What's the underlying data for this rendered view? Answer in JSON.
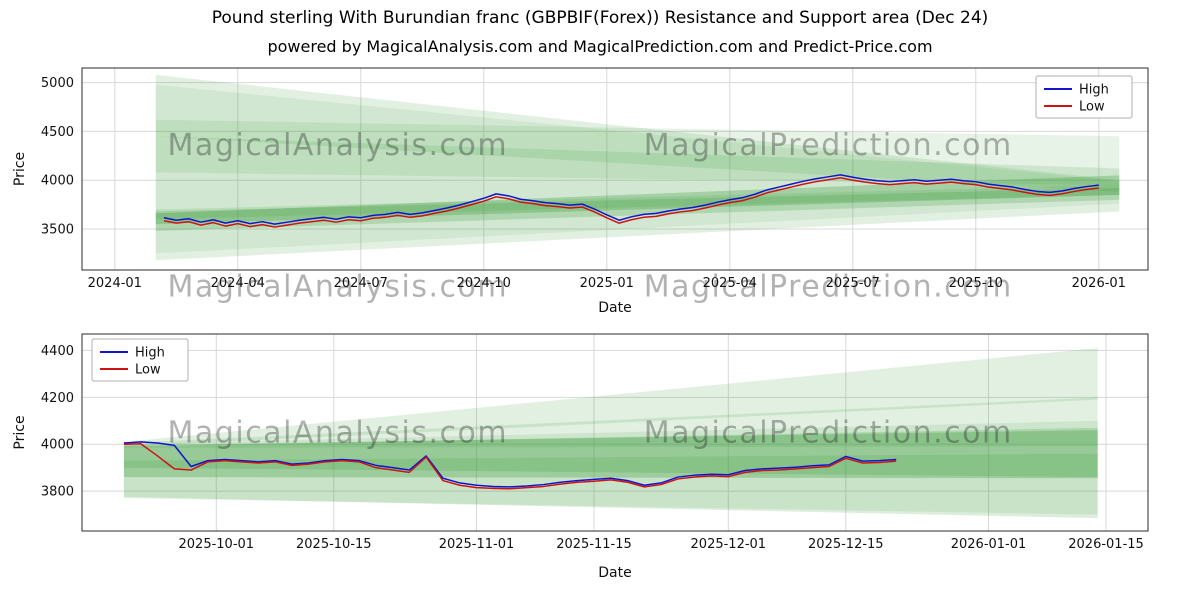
{
  "page": {
    "title": "Pound sterling With Burundian franc (GBPBIF(Forex)) Resistance and Support area (Dec 24)",
    "subtitle": "powered by MagicalAnalysis.com and MagicalPrediction.com and Predict-Price.com"
  },
  "legend": {
    "high_label": "High",
    "low_label": "Low",
    "high_color": "#1414cc",
    "low_color": "#cc1414"
  },
  "chart_data": [
    {
      "type": "line",
      "xlabel": "Date",
      "ylabel": "Price",
      "x_range": [
        -0.8,
        25.2
      ],
      "y_range": [
        3080,
        5150
      ],
      "x_ticks": [
        {
          "v": 0,
          "label": "2024-01"
        },
        {
          "v": 3,
          "label": "2024-04"
        },
        {
          "v": 6,
          "label": "2024-07"
        },
        {
          "v": 9,
          "label": "2024-10"
        },
        {
          "v": 12,
          "label": "2025-01"
        },
        {
          "v": 15,
          "label": "2025-04"
        },
        {
          "v": 18,
          "label": "2025-07"
        },
        {
          "v": 21,
          "label": "2025-10"
        },
        {
          "v": 24,
          "label": "2026-01"
        }
      ],
      "y_ticks": [
        3500,
        4000,
        4500,
        5000
      ],
      "band_color": "#3c9c3c",
      "band_x": [
        1.0,
        24.5
      ],
      "bands": [
        {
          "t0": 5080,
          "b0": 4450,
          "t1": 4000,
          "b1": 3880,
          "o": 0.15
        },
        {
          "t0": 4980,
          "b0": 3250,
          "t1": 3990,
          "b1": 3760,
          "o": 0.1
        },
        {
          "t0": 4620,
          "b0": 4080,
          "t1": 4450,
          "b1": 3950,
          "o": 0.12
        },
        {
          "t0": 4450,
          "b0": 3600,
          "t1": 4120,
          "b1": 3850,
          "o": 0.15
        },
        {
          "t0": 3700,
          "b0": 3180,
          "t1": 3950,
          "b1": 3680,
          "o": 0.15
        },
        {
          "t0": 3680,
          "b0": 3480,
          "t1": 3920,
          "b1": 3800,
          "o": 0.22
        },
        {
          "t0": 3660,
          "b0": 3550,
          "t1": 4050,
          "b1": 3850,
          "o": 0.3
        }
      ],
      "legend_position": "top-right",
      "watermarks": [
        {
          "text": "MagicalAnalysis.com",
          "fx": 0.24,
          "fy": 0.43
        },
        {
          "text": "MagicalPrediction.com",
          "fx": 0.7,
          "fy": 0.43
        },
        {
          "text": "MagicalAnalysis.com",
          "fx": 0.24,
          "fy": 1.13
        },
        {
          "text": "MagicalPrediction.com",
          "fx": 0.7,
          "fy": 1.13
        }
      ],
      "series": [
        {
          "name": "High",
          "color": "#1414cc",
          "x_start": 1.2,
          "x_step": 0.3,
          "y": [
            3615,
            3590,
            3605,
            3570,
            3595,
            3560,
            3585,
            3555,
            3575,
            3550,
            3570,
            3590,
            3605,
            3620,
            3600,
            3625,
            3615,
            3640,
            3650,
            3670,
            3650,
            3665,
            3690,
            3715,
            3745,
            3780,
            3815,
            3860,
            3840,
            3805,
            3790,
            3770,
            3760,
            3745,
            3755,
            3705,
            3645,
            3590,
            3625,
            3650,
            3660,
            3685,
            3705,
            3720,
            3745,
            3775,
            3800,
            3820,
            3855,
            3900,
            3930,
            3960,
            3990,
            4015,
            4035,
            4055,
            4030,
            4010,
            3995,
            3985,
            3995,
            4005,
            3990,
            4000,
            4010,
            3995,
            3985,
            3960,
            3945,
            3930,
            3905,
            3885,
            3875,
            3890,
            3915,
            3935,
            3950
          ]
        },
        {
          "name": "Low",
          "color": "#cc1414",
          "x_start": 1.2,
          "x_step": 0.3,
          "y": [
            3585,
            3560,
            3575,
            3540,
            3565,
            3530,
            3555,
            3525,
            3545,
            3520,
            3540,
            3560,
            3575,
            3590,
            3570,
            3595,
            3585,
            3610,
            3620,
            3640,
            3620,
            3635,
            3660,
            3685,
            3715,
            3750,
            3785,
            3830,
            3810,
            3775,
            3760,
            3740,
            3730,
            3715,
            3725,
            3675,
            3615,
            3560,
            3595,
            3620,
            3630,
            3655,
            3675,
            3690,
            3715,
            3745,
            3770,
            3790,
            3825,
            3870,
            3900,
            3930,
            3960,
            3985,
            4005,
            4025,
            4000,
            3980,
            3965,
            3955,
            3965,
            3975,
            3960,
            3970,
            3980,
            3965,
            3955,
            3930,
            3915,
            3900,
            3875,
            3855,
            3845,
            3860,
            3885,
            3905,
            3920
          ]
        }
      ]
    },
    {
      "type": "line",
      "xlabel": "Date",
      "ylabel": "Price",
      "x_range": [
        -5,
        122
      ],
      "y_range": [
        3630,
        4470
      ],
      "x_ticks": [
        {
          "v": 11,
          "label": "2025-10-01"
        },
        {
          "v": 25,
          "label": "2025-10-15"
        },
        {
          "v": 42,
          "label": "2025-11-01"
        },
        {
          "v": 56,
          "label": "2025-11-15"
        },
        {
          "v": 72,
          "label": "2025-12-01"
        },
        {
          "v": 86,
          "label": "2025-12-15"
        },
        {
          "v": 103,
          "label": "2026-01-01"
        },
        {
          "v": 117,
          "label": "2026-01-15"
        }
      ],
      "y_ticks": [
        3800,
        4000,
        4200,
        4400
      ],
      "band_color": "#3c9c3c",
      "band_x": [
        0,
        116
      ],
      "bands": [
        {
          "t0": 4010,
          "b0": 3990,
          "t1": 4410,
          "b1": 4190,
          "o": 0.15
        },
        {
          "t0": 4005,
          "b0": 3985,
          "t1": 4200,
          "b1": 3990,
          "o": 0.15
        },
        {
          "t0": 4000,
          "b0": 3770,
          "t1": 4100,
          "b1": 3700,
          "o": 0.12
        },
        {
          "t0": 3995,
          "b0": 3860,
          "t1": 4060,
          "b1": 3855,
          "o": 0.3
        },
        {
          "t0": 3930,
          "b0": 3775,
          "t1": 3960,
          "b1": 3685,
          "o": 0.18
        },
        {
          "t0": 3990,
          "b0": 3900,
          "t1": 4070,
          "b1": 3860,
          "o": 0.22
        }
      ],
      "legend_position": "top-left",
      "watermarks": [
        {
          "text": "MagicalAnalysis.com",
          "fx": 0.24,
          "fy": 0.55
        },
        {
          "text": "MagicalPrediction.com",
          "fx": 0.7,
          "fy": 0.55
        }
      ],
      "series": [
        {
          "name": "High",
          "color": "#1414cc",
          "x_start": 0,
          "x_step": 2,
          "y": [
            4005,
            4010,
            4005,
            3995,
            3905,
            3930,
            3935,
            3930,
            3925,
            3930,
            3915,
            3920,
            3930,
            3935,
            3930,
            3910,
            3900,
            3890,
            3950,
            3855,
            3835,
            3825,
            3820,
            3818,
            3822,
            3828,
            3838,
            3845,
            3850,
            3855,
            3845,
            3825,
            3835,
            3860,
            3868,
            3872,
            3870,
            3888,
            3895,
            3898,
            3902,
            3908,
            3912,
            3948,
            3928,
            3930,
            3935
          ]
        },
        {
          "name": "Low",
          "color": "#cc1414",
          "x_start": 0,
          "x_step": 2,
          "y": [
            4000,
            4002,
            3950,
            3895,
            3890,
            3925,
            3930,
            3925,
            3920,
            3925,
            3910,
            3915,
            3925,
            3930,
            3925,
            3900,
            3890,
            3880,
            3945,
            3845,
            3825,
            3815,
            3812,
            3810,
            3815,
            3820,
            3830,
            3838,
            3842,
            3848,
            3838,
            3818,
            3828,
            3852,
            3860,
            3865,
            3862,
            3880,
            3888,
            3890,
            3895,
            3900,
            3905,
            3940,
            3920,
            3922,
            3928
          ]
        }
      ]
    }
  ]
}
